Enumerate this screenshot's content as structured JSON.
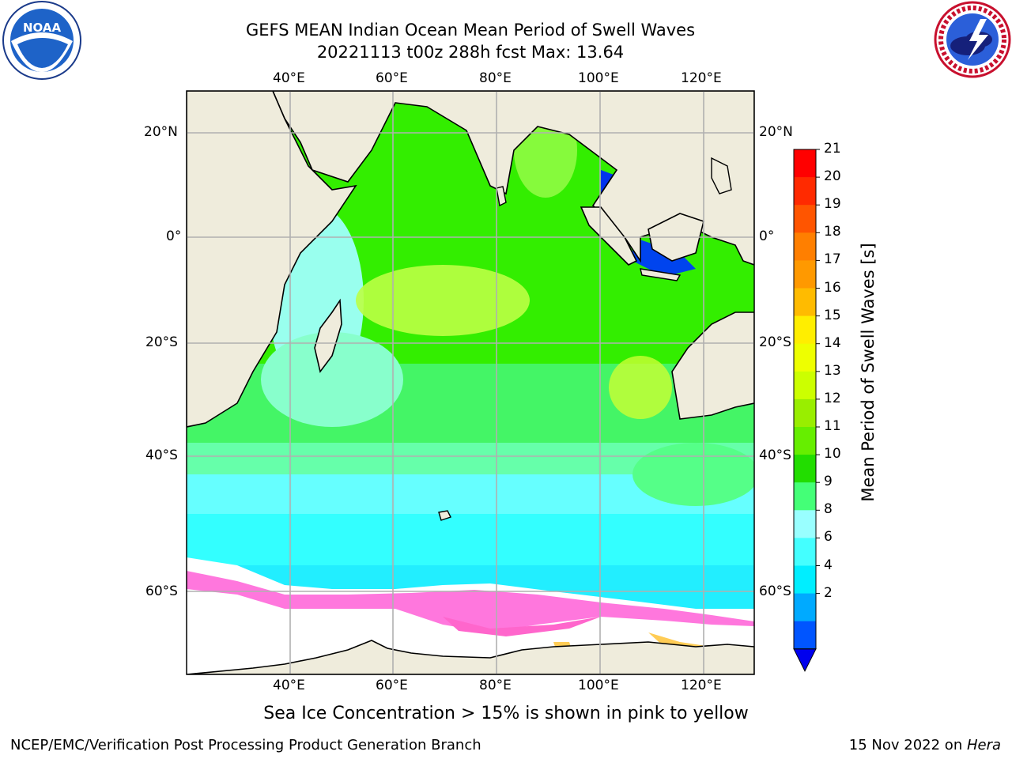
{
  "header": {
    "title_line1": "GEFS MEAN Indian Ocean Mean Period of Swell Waves",
    "title_line2": "20221113 t00z 288h fcst   Max: 13.64"
  },
  "logos": {
    "left": {
      "icon": "noaa-logo",
      "text": "NOAA"
    },
    "right": {
      "icon": "nws-logo",
      "text": "NATIONAL WEATHER SERVICE"
    }
  },
  "map": {
    "lon_labels": [
      "40°E",
      "60°E",
      "80°E",
      "100°E",
      "120°E"
    ],
    "lat_labels": [
      "20°N",
      "0°",
      "20°S",
      "40°S",
      "60°S"
    ],
    "land_color": "#efecdc",
    "grid_color": "#b0b0b0"
  },
  "colorbar": {
    "title": "Mean Period of Swell Waves [s]",
    "levels": [
      "21",
      "20",
      "19",
      "18",
      "17",
      "16",
      "15",
      "14",
      "13",
      "12",
      "11",
      "10",
      "9",
      "8",
      "6",
      "4",
      "2"
    ],
    "colors_top_to_bottom": [
      "#ff0000",
      "#ff2a00",
      "#ff5500",
      "#ff7f00",
      "#ff9900",
      "#ffbb00",
      "#ffee00",
      "#eeff00",
      "#ccff00",
      "#99ee00",
      "#66ee00",
      "#22dd00",
      "#44ff77",
      "#99ffff",
      "#44ffff",
      "#00eeff",
      "#00aaff",
      "#0055ff"
    ],
    "extend_color": "#0000ee"
  },
  "note": "Sea Ice Concentration > 15% is shown in pink to yellow",
  "footer": {
    "left": "NCEP/EMC/Verification Post Processing Product Generation Branch",
    "right_date": "15 Nov 2022 on ",
    "right_machine": "Hera"
  }
}
